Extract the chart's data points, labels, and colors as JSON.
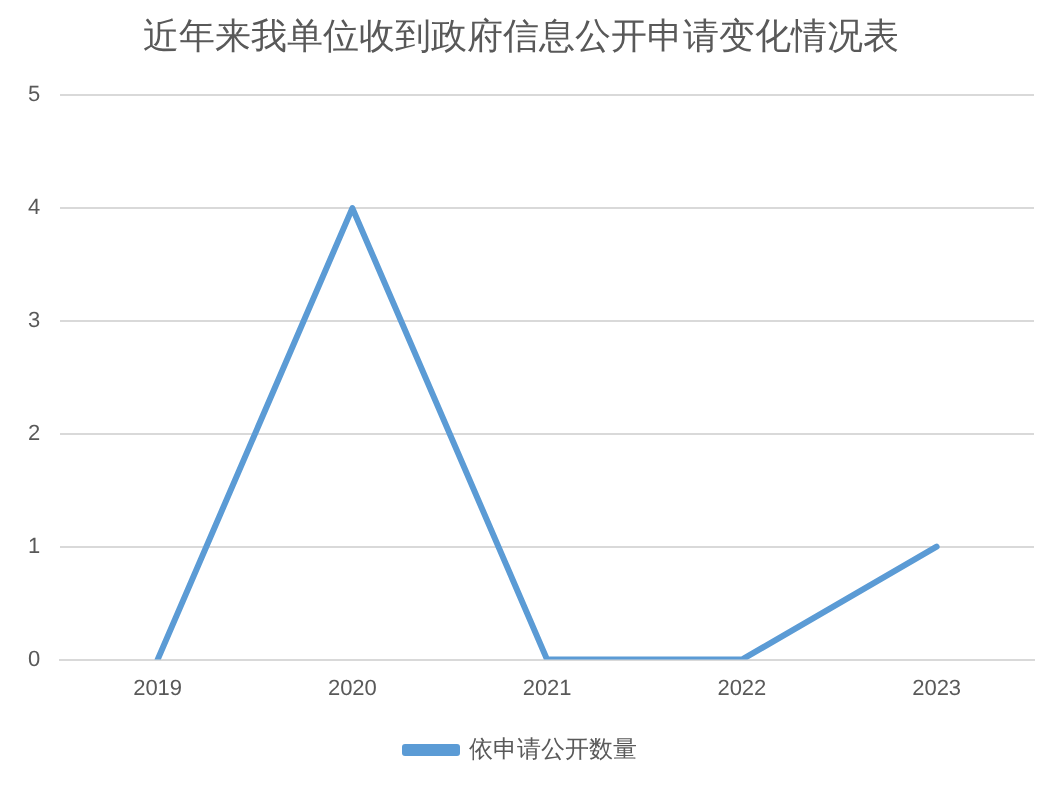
{
  "chart_data": {
    "type": "line",
    "title": "近年来我单位收到政府信息公开申请变化情况表",
    "categories": [
      "2019",
      "2020",
      "2021",
      "2022",
      "2023"
    ],
    "series": [
      {
        "name": "依申请公开数量",
        "color": "#5b9bd5",
        "values": [
          0,
          4,
          0,
          0,
          1
        ]
      }
    ],
    "ylim": [
      0,
      5
    ],
    "yticks": [
      0,
      1,
      2,
      3,
      4,
      5
    ],
    "grid": "y",
    "legend": "bottom",
    "marker": "none"
  }
}
